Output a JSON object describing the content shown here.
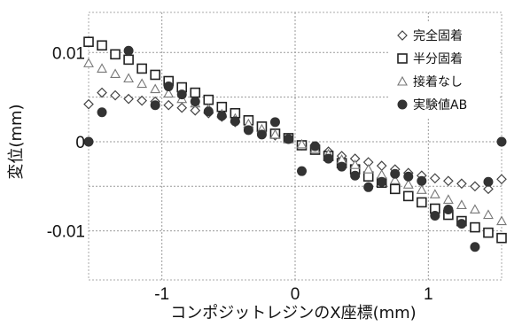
{
  "chart_data": {
    "type": "scatter",
    "xlabel": "コンポジットレジンのX座標(mm)",
    "ylabel": "変位(mm)",
    "xlim": [
      -1.55,
      1.55
    ],
    "ylim": [
      -0.0155,
      0.0145
    ],
    "x_ticks": [
      {
        "value": -1,
        "label": "-1"
      },
      {
        "value": 0,
        "label": "0"
      },
      {
        "value": 1,
        "label": "1"
      }
    ],
    "y_ticks": [
      {
        "value": 0.01,
        "label": "0.01"
      },
      {
        "value": 0,
        "label": "0"
      },
      {
        "value": -0.01,
        "label": "-0.01"
      }
    ],
    "grid": true,
    "legend_position": "top-right",
    "series": [
      {
        "name": "完全固着",
        "marker": "diamond",
        "color": "#444444",
        "x": [
          -1.55,
          -1.45,
          -1.35,
          -1.25,
          -1.15,
          -1.05,
          -0.95,
          -0.85,
          -0.75,
          -0.65,
          -0.55,
          -0.45,
          -0.35,
          -0.25,
          -0.15,
          -0.05,
          0.05,
          0.15,
          0.25,
          0.35,
          0.45,
          0.55,
          0.65,
          0.75,
          0.85,
          0.95,
          1.05,
          1.15,
          1.25,
          1.35,
          1.45,
          1.55
        ],
        "y": [
          0.0042,
          0.0055,
          0.0052,
          0.0048,
          0.0046,
          0.0045,
          0.0041,
          0.0038,
          0.0035,
          0.0032,
          0.0028,
          0.0022,
          0.0016,
          0.0011,
          0.0007,
          0.0004,
          -0.0004,
          -0.0007,
          -0.0011,
          -0.0016,
          -0.0019,
          -0.0023,
          -0.0027,
          -0.0031,
          -0.0035,
          -0.0038,
          -0.0041,
          -0.0044,
          -0.0047,
          -0.005,
          -0.0053,
          -0.0042
        ]
      },
      {
        "name": "半分固着",
        "marker": "square",
        "color": "#222222",
        "x": [
          -1.55,
          -1.45,
          -1.35,
          -1.25,
          -1.15,
          -1.05,
          -0.95,
          -0.85,
          -0.75,
          -0.65,
          -0.55,
          -0.45,
          -0.35,
          -0.25,
          -0.15,
          -0.05,
          0.05,
          0.15,
          0.25,
          0.35,
          0.45,
          0.55,
          0.65,
          0.75,
          0.85,
          0.95,
          1.05,
          1.15,
          1.25,
          1.35,
          1.45,
          1.55
        ],
        "y": [
          0.0112,
          0.0108,
          0.0098,
          0.0092,
          0.0082,
          0.0075,
          0.0068,
          0.0061,
          0.0055,
          0.0047,
          0.0039,
          0.0032,
          0.0024,
          0.0017,
          0.0009,
          0.0004,
          -0.0004,
          -0.0009,
          -0.0016,
          -0.0024,
          -0.0031,
          -0.0039,
          -0.0046,
          -0.0053,
          -0.0061,
          -0.0068,
          -0.0075,
          -0.0082,
          -0.0089,
          -0.0096,
          -0.0102,
          -0.0108
        ]
      },
      {
        "name": "接着なし",
        "marker": "triangle",
        "color": "#777777",
        "x": [
          -1.55,
          -1.45,
          -1.35,
          -1.25,
          -1.15,
          -1.05,
          -0.95,
          -0.85,
          -0.75,
          -0.65,
          -0.55,
          -0.45,
          -0.35,
          -0.25,
          -0.15,
          -0.05,
          0.05,
          0.15,
          0.25,
          0.35,
          0.45,
          0.55,
          0.65,
          0.75,
          0.85,
          0.95,
          1.05,
          1.15,
          1.25,
          1.35,
          1.45,
          1.55
        ],
        "y": [
          0.0088,
          0.0082,
          0.0076,
          0.0071,
          0.0065,
          0.0059,
          0.0054,
          0.0048,
          0.0043,
          0.0037,
          0.0031,
          0.0026,
          0.002,
          0.0014,
          0.0008,
          0.0003,
          -0.0003,
          -0.0008,
          -0.0014,
          -0.002,
          -0.0026,
          -0.0031,
          -0.0037,
          -0.0043,
          -0.0048,
          -0.0054,
          -0.0059,
          -0.0065,
          -0.0071,
          -0.0076,
          -0.0082,
          -0.0089
        ]
      },
      {
        "name": "実験値AB",
        "marker": "circle",
        "color": "#333333",
        "x": [
          -1.55,
          -1.45,
          -1.25,
          -1.05,
          -0.95,
          -0.85,
          -0.75,
          -0.65,
          -0.55,
          -0.45,
          -0.35,
          -0.25,
          -0.15,
          -0.05,
          0.05,
          0.15,
          0.25,
          0.35,
          0.45,
          0.55,
          0.65,
          0.75,
          0.85,
          0.95,
          1.05,
          1.15,
          1.25,
          1.35,
          1.45,
          1.55
        ],
        "y": [
          0.0,
          0.0033,
          0.0102,
          0.0041,
          0.0062,
          0.0053,
          0.0045,
          0.0034,
          0.0029,
          0.0023,
          0.0013,
          0.0008,
          0.0022,
          0.0003,
          -0.0033,
          -0.0005,
          -0.0019,
          -0.0028,
          -0.0038,
          -0.0051,
          -0.0045,
          -0.0036,
          -0.0039,
          -0.0044,
          -0.0083,
          -0.0076,
          -0.0092,
          -0.0118,
          -0.0045,
          0.0
        ]
      }
    ]
  }
}
